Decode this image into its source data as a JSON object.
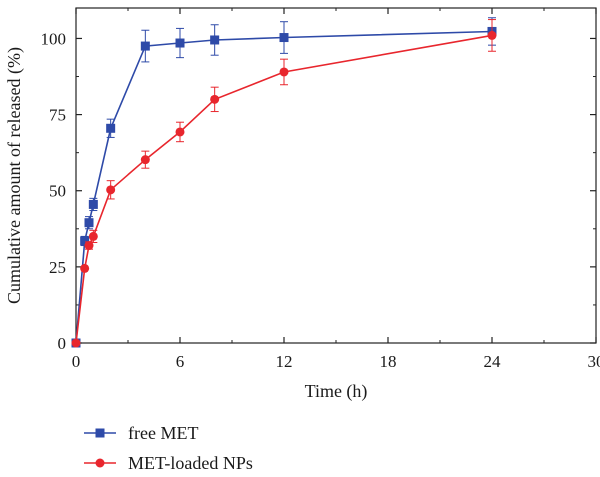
{
  "chart_data": {
    "type": "line",
    "xlabel": "Time (h)",
    "ylabel": "Cumulative amount of released (%)",
    "xlim": [
      0,
      30
    ],
    "ylim": [
      0,
      110
    ],
    "xticks": [
      0,
      6,
      12,
      18,
      24,
      30
    ],
    "xtick_labels": [
      "0",
      "6",
      "12",
      "18",
      "24",
      "30"
    ],
    "yticks": [
      0,
      25,
      50,
      75,
      100
    ],
    "ytick_labels": [
      "0",
      "25",
      "50",
      "75",
      "100"
    ],
    "grid": false,
    "legend_position": "bottom-left",
    "series": [
      {
        "name": "free MET",
        "color": "#2e4aa8",
        "marker": "square",
        "x": [
          0,
          0.5,
          0.75,
          1,
          2,
          4,
          6,
          8,
          12,
          24
        ],
        "y": [
          0,
          33.5,
          39.5,
          45.5,
          70.5,
          97.5,
          98.5,
          99.5,
          100.3,
          102.3
        ],
        "err": [
          0,
          1.5,
          2,
          2,
          3,
          5.2,
          4.8,
          5,
          5.2,
          4.5
        ]
      },
      {
        "name": "MET-loaded NPs",
        "color": "#e8262d",
        "marker": "circle",
        "x": [
          0,
          0.5,
          0.75,
          1,
          2,
          4,
          6,
          8,
          12,
          24
        ],
        "y": [
          0,
          24.5,
          32,
          35,
          50.3,
          60.2,
          69.3,
          80,
          89,
          101
        ],
        "err": [
          0,
          0,
          1.2,
          2,
          3,
          2.8,
          3.2,
          4,
          4.2,
          5.2
        ]
      }
    ]
  }
}
